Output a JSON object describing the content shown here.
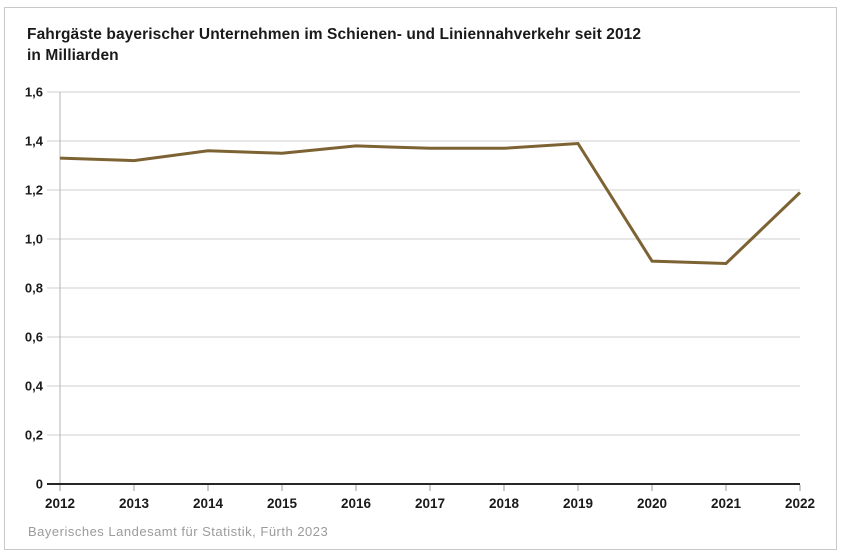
{
  "title": "Fahrgäste bayerischer Unternehmen im Schienen- und Liniennahverkehr seit 2012",
  "subtitle": "in Milliarden",
  "source": "Bayerisches Landesamt für Statistik, Fürth 2023",
  "colors": {
    "line": "#7d6333",
    "grid": "#cfcfcf",
    "zero_axis": "#262626",
    "y_axis": "#b3b3b3",
    "tick_mark": "#999999",
    "text": "#1a1a1a",
    "source_text": "#9b9b9b"
  },
  "chart_data": {
    "type": "line",
    "title": "Fahrgäste bayerischer Unternehmen im Schienen- und Liniennahverkehr seit 2012",
    "subtitle": "in Milliarden",
    "x": [
      2012,
      2013,
      2014,
      2015,
      2016,
      2017,
      2018,
      2019,
      2020,
      2021,
      2022
    ],
    "xtick_labels": [
      "2012",
      "2013",
      "2014",
      "2015",
      "2016",
      "2017",
      "2018",
      "2019",
      "2020",
      "2021",
      "2022"
    ],
    "series": [
      {
        "name": "Fahrgäste in Milliarden",
        "values": [
          1.33,
          1.32,
          1.36,
          1.35,
          1.38,
          1.37,
          1.37,
          1.39,
          0.91,
          0.9,
          1.19
        ]
      }
    ],
    "ylim": [
      0,
      1.6
    ],
    "ytick_step": 0.2,
    "ytick_labels_top_to_bottom": [
      "1,6",
      "1,4",
      "1,2",
      "1,0",
      "0,8",
      "0,6",
      "0,4",
      "0,2",
      "0"
    ],
    "grid": "horizontal",
    "legend": "none",
    "xlabel": "",
    "ylabel": ""
  }
}
